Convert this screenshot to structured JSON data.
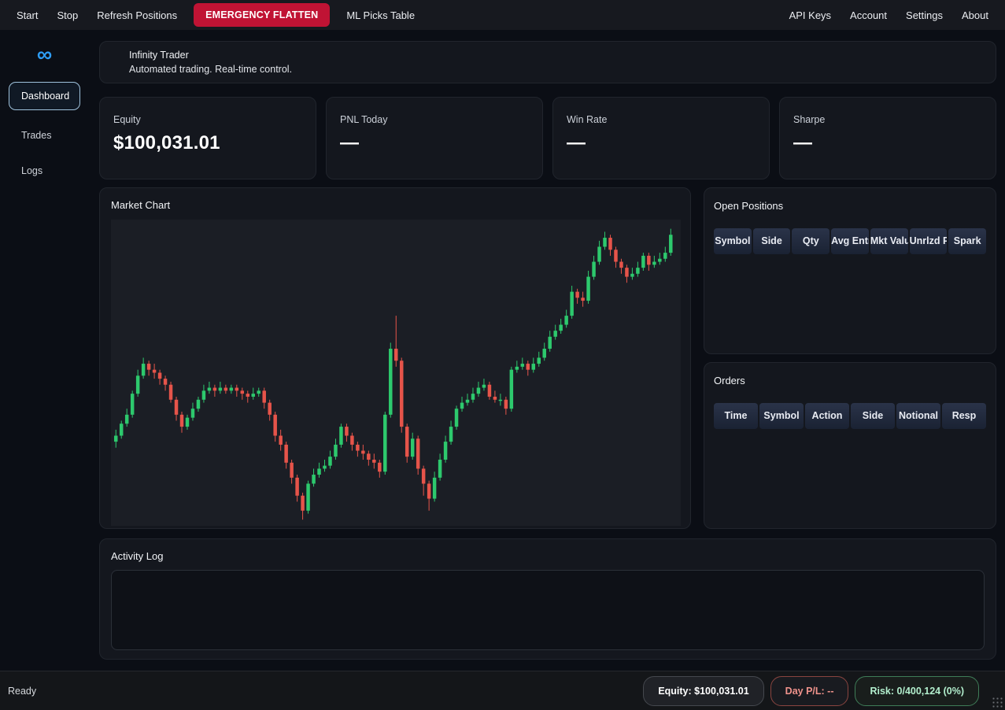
{
  "menubar": {
    "items_left": [
      {
        "label": "Start"
      },
      {
        "label": "Stop"
      },
      {
        "label": "Refresh Positions"
      },
      {
        "label": "EMERGENCY FLATTEN",
        "danger": true
      },
      {
        "label": "ML Picks Table"
      }
    ],
    "items_right": [
      {
        "label": "API Keys"
      },
      {
        "label": "Account"
      },
      {
        "label": "Settings"
      },
      {
        "label": "About"
      }
    ]
  },
  "sidebar": {
    "logo": "∞",
    "items": [
      {
        "label": "Dashboard",
        "active": true
      },
      {
        "label": "Trades",
        "active": false
      },
      {
        "label": "Logs",
        "active": false
      }
    ]
  },
  "header": {
    "title": "Infinity Trader",
    "subtitle": "Automated trading. Real-time control."
  },
  "stats": [
    {
      "label": "Equity",
      "value": "$100,031.01"
    },
    {
      "label": "PNL Today",
      "value": "—"
    },
    {
      "label": "Win Rate",
      "value": "—"
    },
    {
      "label": "Sharpe",
      "value": "—"
    }
  ],
  "market_chart": {
    "title": "Market Chart"
  },
  "open_positions": {
    "title": "Open Positions",
    "columns": [
      "Symbol",
      "Side",
      "Qty",
      "Avg Entry",
      "Mkt Value",
      "Unrlzd PnL",
      "Spark"
    ],
    "rows": []
  },
  "orders": {
    "title": "Orders",
    "columns": [
      "Time",
      "Symbol",
      "Action",
      "Side",
      "Notional",
      "Resp"
    ],
    "rows": []
  },
  "activity_log": {
    "title": "Activity Log",
    "content": ""
  },
  "statusbar": {
    "status": "Ready",
    "equity_pill": "Equity: $100,031.01",
    "day_pl_pill": "Day P/L: --",
    "risk_pill": "Risk: 0/400,124 (0%)"
  },
  "colors": {
    "accent_blue": "#2e9cf4",
    "emergency_red": "#c01334",
    "candle_up": "#2dc96d",
    "candle_down": "#e6544a",
    "day_pl_red": "#f0938c",
    "risk_green": "#b2eecd"
  },
  "chart_data": {
    "type": "candlestick",
    "title": "Market Chart",
    "axes_visible": false,
    "grid": false,
    "price_range": [
      0,
      100
    ],
    "up_color": "#2dc96d",
    "down_color": "#e6544a",
    "ohlc": [
      [
        27,
        31,
        25,
        29
      ],
      [
        29,
        34,
        28,
        33
      ],
      [
        33,
        38,
        32,
        36
      ],
      [
        36,
        44,
        35,
        43
      ],
      [
        43,
        51,
        42,
        49
      ],
      [
        49,
        55,
        48,
        53
      ],
      [
        53,
        54,
        49,
        51
      ],
      [
        51,
        53,
        48,
        50
      ],
      [
        50,
        51,
        46,
        48
      ],
      [
        48,
        49,
        44,
        46
      ],
      [
        46,
        47,
        40,
        41
      ],
      [
        41,
        42,
        34,
        36
      ],
      [
        36,
        37,
        30,
        32
      ],
      [
        32,
        36,
        31,
        35
      ],
      [
        35,
        40,
        34,
        38
      ],
      [
        38,
        42,
        37,
        41
      ],
      [
        41,
        46,
        40,
        44
      ],
      [
        44,
        47,
        43,
        45
      ],
      [
        45,
        46,
        42,
        44
      ],
      [
        44,
        47,
        43,
        45
      ],
      [
        45,
        46,
        43,
        44
      ],
      [
        44,
        46,
        43,
        45
      ],
      [
        45,
        46,
        42,
        44
      ],
      [
        44,
        45,
        41,
        43
      ],
      [
        43,
        44,
        40,
        42
      ],
      [
        42,
        45,
        41,
        43
      ],
      [
        43,
        45,
        42,
        44
      ],
      [
        44,
        45,
        38,
        40
      ],
      [
        40,
        41,
        34,
        36
      ],
      [
        36,
        37,
        27,
        29
      ],
      [
        29,
        31,
        24,
        26
      ],
      [
        26,
        27,
        18,
        20
      ],
      [
        20,
        21,
        13,
        15
      ],
      [
        15,
        16,
        7,
        9
      ],
      [
        9,
        10,
        1,
        4
      ],
      [
        4,
        14,
        3,
        13
      ],
      [
        13,
        18,
        12,
        16
      ],
      [
        16,
        20,
        15,
        18
      ],
      [
        18,
        21,
        17,
        19
      ],
      [
        19,
        24,
        18,
        22
      ],
      [
        22,
        28,
        21,
        26
      ],
      [
        26,
        33,
        25,
        32
      ],
      [
        32,
        33,
        27,
        29
      ],
      [
        29,
        30,
        24,
        26
      ],
      [
        26,
        27,
        22,
        24
      ],
      [
        24,
        26,
        21,
        23
      ],
      [
        23,
        24,
        19,
        21
      ],
      [
        21,
        23,
        18,
        20
      ],
      [
        20,
        21,
        15,
        17
      ],
      [
        17,
        37,
        16,
        36
      ],
      [
        36,
        60,
        35,
        58
      ],
      [
        58,
        69,
        52,
        54
      ],
      [
        54,
        55,
        30,
        32
      ],
      [
        32,
        33,
        20,
        22
      ],
      [
        22,
        30,
        21,
        28
      ],
      [
        28,
        29,
        16,
        18
      ],
      [
        18,
        19,
        9,
        13
      ],
      [
        13,
        14,
        4,
        8
      ],
      [
        8,
        17,
        7,
        15
      ],
      [
        15,
        23,
        14,
        21
      ],
      [
        21,
        29,
        20,
        27
      ],
      [
        27,
        34,
        26,
        32
      ],
      [
        32,
        39,
        31,
        38
      ],
      [
        38,
        42,
        37,
        40
      ],
      [
        40,
        43,
        39,
        41
      ],
      [
        41,
        45,
        40,
        43
      ],
      [
        43,
        47,
        42,
        45
      ],
      [
        45,
        48,
        44,
        46
      ],
      [
        46,
        47,
        41,
        42
      ],
      [
        42,
        44,
        40,
        41
      ],
      [
        41,
        43,
        39,
        41
      ],
      [
        41,
        42,
        36,
        38
      ],
      [
        38,
        52,
        37,
        51
      ],
      [
        51,
        54,
        50,
        52
      ],
      [
        52,
        55,
        51,
        53
      ],
      [
        53,
        54,
        49,
        51
      ],
      [
        51,
        55,
        50,
        53
      ],
      [
        53,
        57,
        52,
        55
      ],
      [
        55,
        60,
        54,
        58
      ],
      [
        58,
        64,
        57,
        62
      ],
      [
        62,
        66,
        61,
        64
      ],
      [
        64,
        68,
        63,
        66
      ],
      [
        66,
        71,
        65,
        69
      ],
      [
        69,
        79,
        68,
        77
      ],
      [
        77,
        78,
        73,
        75
      ],
      [
        75,
        77,
        72,
        74
      ],
      [
        74,
        84,
        73,
        82
      ],
      [
        82,
        89,
        81,
        87
      ],
      [
        87,
        94,
        86,
        92
      ],
      [
        92,
        97,
        91,
        95
      ],
      [
        95,
        96,
        89,
        91
      ],
      [
        91,
        92,
        85,
        87
      ],
      [
        87,
        88,
        83,
        85
      ],
      [
        85,
        86,
        80,
        82
      ],
      [
        82,
        85,
        81,
        83
      ],
      [
        83,
        87,
        82,
        85
      ],
      [
        85,
        90,
        84,
        89
      ],
      [
        89,
        90,
        84,
        86
      ],
      [
        86,
        89,
        85,
        87
      ],
      [
        87,
        90,
        86,
        88
      ],
      [
        88,
        92,
        87,
        90
      ],
      [
        90,
        98,
        89,
        96
      ]
    ]
  }
}
